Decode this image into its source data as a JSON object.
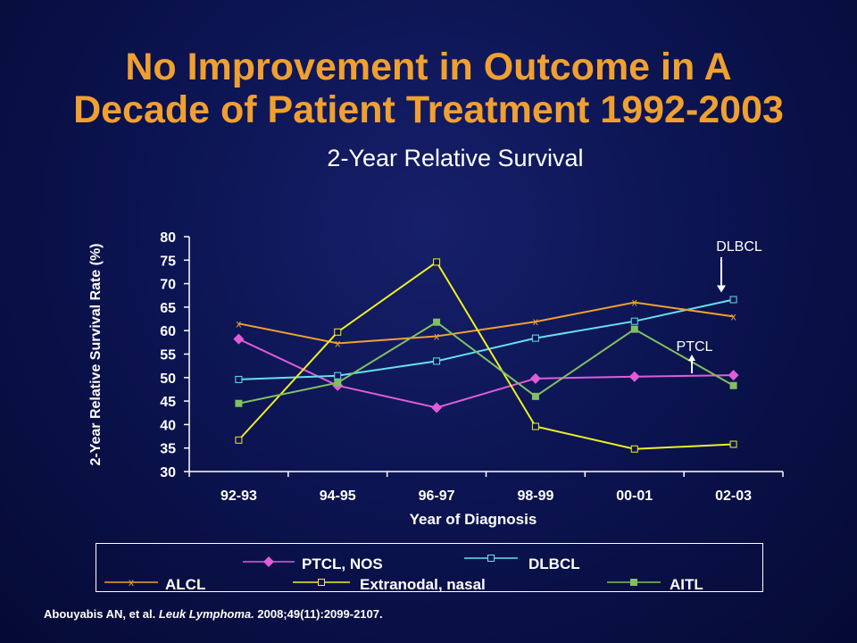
{
  "title_line1": "No Improvement in Outcome in A",
  "title_line2": "Decade of Patient Treatment 1992-2003",
  "subtitle": "2-Year Relative Survival",
  "colors": {
    "title": "#f0a030",
    "ptcl_nos": "#e05cd8",
    "dlbcl": "#66e0f0",
    "alcl": "#f0a030",
    "extranodal": "#f0f020",
    "aitl": "#80c060"
  },
  "chart_data": {
    "type": "line",
    "xlabel": "Year of Diagnosis",
    "ylabel": "2-Year Relative Survival Rate (%)",
    "ylim": [
      30,
      80
    ],
    "yticks": [
      30,
      35,
      40,
      45,
      50,
      55,
      60,
      65,
      70,
      75,
      80
    ],
    "categories": [
      "92-93",
      "94-95",
      "96-97",
      "98-99",
      "00-01",
      "02-03"
    ],
    "series": [
      {
        "key": "ptcl_nos",
        "name": "PTCL, NOS",
        "marker": "diamond",
        "values": [
          58.2,
          48.3,
          43.6,
          49.8,
          50.2,
          50.5
        ]
      },
      {
        "key": "dlbcl",
        "name": "DLBCL",
        "marker": "square-open",
        "values": [
          49.6,
          50.4,
          53.5,
          58.4,
          62.0,
          66.6
        ]
      },
      {
        "key": "alcl",
        "name": "ALCL",
        "marker": "x",
        "values": [
          61.5,
          57.3,
          58.8,
          61.9,
          66.0,
          63.0
        ]
      },
      {
        "key": "extranodal",
        "name": "Extranodal, nasal",
        "marker": "square-open",
        "values": [
          36.7,
          59.7,
          74.6,
          39.6,
          34.8,
          35.8
        ]
      },
      {
        "key": "aitl",
        "name": "AITL",
        "marker": "square-filled",
        "values": [
          44.5,
          48.9,
          61.8,
          46.0,
          60.3,
          48.3
        ]
      }
    ],
    "annotations": [
      {
        "text": "DLBCL",
        "points_to": "DLBCL 02-03"
      },
      {
        "text": "PTCL",
        "points_to": "PTCL, NOS 02-03"
      }
    ]
  },
  "footer": {
    "authors": "Abouyabis AN, et al.",
    "journal": "Leuk Lymphoma.",
    "citation": "2008;49(11):2099-2107."
  }
}
